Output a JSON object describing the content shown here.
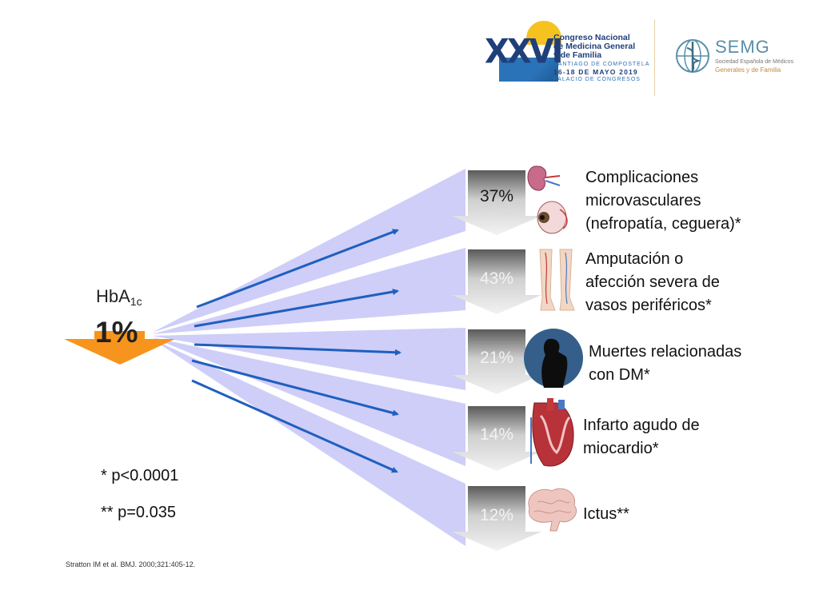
{
  "header": {
    "congress": {
      "numeral": "XXVI",
      "lines": [
        "Congreso Nacional",
        "de Medicina General",
        "y de Familia"
      ],
      "city": "SANTIAGO DE COMPOSTELA",
      "dates": "16-18 DE MAYO 2019",
      "venue": "PALACIO DE CONGRESOS"
    },
    "semg": {
      "name": "SEMG",
      "sub1": "Sociedad Española de Médicos",
      "sub2": "Generales y de Familia"
    }
  },
  "source": {
    "label_main": "HbA",
    "label_sub": "1c",
    "value": "1%"
  },
  "outcomes": [
    {
      "percent": "37%",
      "label": "Complicaciones\nmicrovasculares\n(nefropatía, ceguera)*",
      "icon": "kidney-eye-icon"
    },
    {
      "percent": "43%",
      "label": "Amputación o\nafección severa de\nvasos periféricos*",
      "icon": "legs-icon"
    },
    {
      "percent": "21%",
      "label": "Muertes relacionadas\ncon DM*",
      "icon": "silhouette-icon"
    },
    {
      "percent": "14%",
      "label": "Infarto agudo de\nmiocardio*",
      "icon": "heart-icon"
    },
    {
      "percent": "12%",
      "label": "Ictus**",
      "icon": "brain-icon"
    }
  ],
  "footnotes": [
    "* p<0.0001",
    "** p=0.035"
  ],
  "citation": "Stratton IM et al. BMJ. 2000;321:405-12.",
  "colors": {
    "fan": "#c9c9f7",
    "arrow_blue": "#1f5fbf",
    "source_arrow": "#f7941d"
  }
}
